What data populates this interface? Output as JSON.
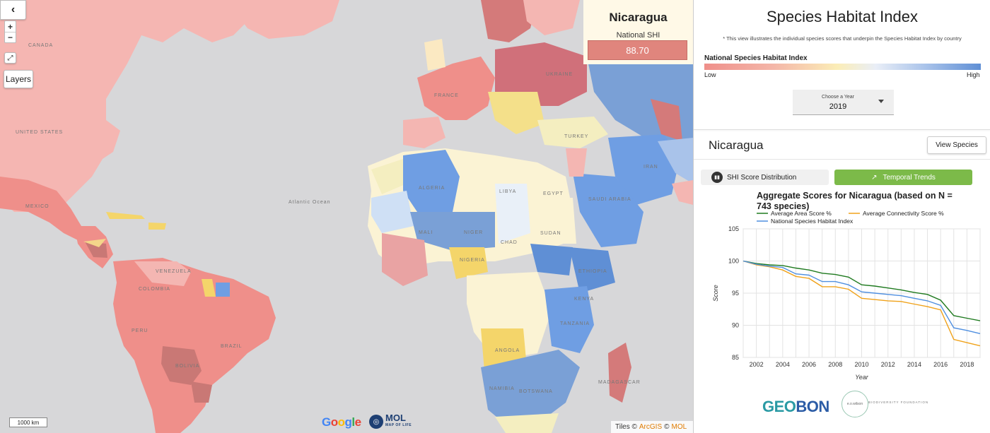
{
  "map": {
    "back_icon": "chevron-left-icon",
    "back_glyph": "‹",
    "zoom_in": "+",
    "zoom_out": "−",
    "fullscreen_glyph": "⤢",
    "layers_label": "Layers",
    "scale_label": "1000 km",
    "google_logo": "Google",
    "mol_logo": "MOL",
    "mol_sub": "MAP OF LIFE",
    "attribution_prefix": "Tiles ©",
    "attribution_arcgis": "ArcGIS",
    "attribution_sep": "©",
    "attribution_mol": "MOL",
    "labels": {
      "canada": "CANADA",
      "united_states": "UNITED STATES",
      "brazil": "BRAZIL",
      "atlantic": "Atlantic Ocean",
      "mexico": "MEXICO",
      "algeria": "ALGERIA",
      "libya": "LIBYA",
      "egypt": "EGYPT",
      "sudan": "SUDAN",
      "chad": "CHAD",
      "niger": "NIGER",
      "mali": "MALI",
      "nigeria": "NIGERIA",
      "ethiopia": "ETHIOPIA",
      "kenya": "KENYA",
      "tanzania": "TANZANIA",
      "angola": "ANGOLA",
      "namibia": "NAMIBIA",
      "botswana": "BOTSWANA",
      "madagascar": "MADAGASCAR",
      "saudi": "SAUDI ARABIA",
      "iran": "IRAN",
      "turkey": "TURKEY",
      "ukraine": "UKRAINE",
      "france": "FRANCE",
      "peru": "PERU",
      "bolivia": "BOLIVIA",
      "colombia": "COLOMBIA",
      "venezuela": "VENEZUELA"
    }
  },
  "country_card": {
    "name": "Nicaragua",
    "label": "National SHI",
    "value": "88.70",
    "color": "#e0857d"
  },
  "panel": {
    "title": "Species Habitat Index",
    "note": "* This view illustrates the individual species scores that underpin the Species Habitat Index by country",
    "legend_title": "National Species Habitat Index",
    "legend_low": "Low",
    "legend_high": "High",
    "year_label": "Choose a Year",
    "year_value": "2019",
    "country": "Nicaragua",
    "view_species": "View Species",
    "tab_distribution": "SHI Score Distribution",
    "tab_trends": "Temporal Trends",
    "footer_geobon_g": "GEO",
    "footer_geobon_b": "BON",
    "footer_eow": "e.o.wilson",
    "footer_eow_sub": "BIODIVERSITY FOUNDATION"
  },
  "chart_data": {
    "type": "line",
    "title": "Aggregate Scores for Nicaragua (based on N = 743 species)",
    "xlabel": "Year",
    "ylabel": "Score",
    "ylim": [
      85,
      105
    ],
    "xlim": [
      2001,
      2019
    ],
    "yticks": [
      85,
      90,
      95,
      100,
      105
    ],
    "xticks": [
      2002,
      2004,
      2006,
      2008,
      2010,
      2012,
      2014,
      2016,
      2018
    ],
    "grid": true,
    "legend": "top",
    "x": [
      2001,
      2002,
      2003,
      2004,
      2005,
      2006,
      2007,
      2008,
      2009,
      2010,
      2011,
      2012,
      2013,
      2014,
      2015,
      2016,
      2017,
      2018,
      2019
    ],
    "series": [
      {
        "name": "Average Area Score %",
        "color": "#1f7a1f",
        "values": [
          100,
          99.6,
          99.4,
          99.3,
          98.9,
          98.6,
          98.1,
          97.9,
          97.5,
          96.3,
          96.1,
          95.8,
          95.5,
          95.1,
          94.8,
          93.9,
          91.5,
          91.1,
          90.7
        ]
      },
      {
        "name": "Average Connectivity Score %",
        "color": "#f0a21a",
        "values": [
          100,
          99.4,
          99.1,
          98.6,
          97.6,
          97.3,
          96.0,
          96.0,
          95.6,
          94.2,
          94.0,
          93.8,
          93.7,
          93.3,
          92.9,
          92.4,
          87.8,
          87.3,
          86.8
        ]
      },
      {
        "name": "National Species Habitat Index",
        "color": "#4f8fe0",
        "values": [
          100,
          99.5,
          99.2,
          99.0,
          98.0,
          97.8,
          96.8,
          96.8,
          96.3,
          95.2,
          95.0,
          94.8,
          94.6,
          94.2,
          93.8,
          93.1,
          89.6,
          89.2,
          88.7
        ]
      }
    ]
  }
}
